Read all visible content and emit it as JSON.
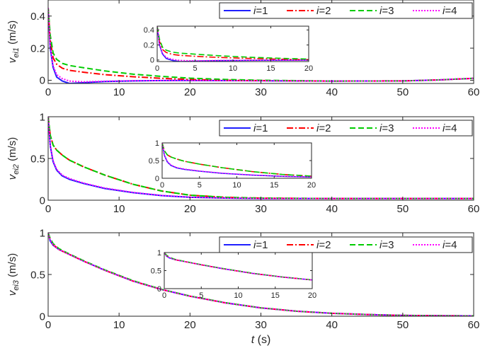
{
  "chart_data": [
    {
      "type": "line",
      "ylabel": "v_ei1 (m/s)",
      "ylabel_parts": {
        "v": "v",
        "sub": "ei1",
        "unit": " (m/s)"
      },
      "xlabel": "",
      "xlim": [
        0,
        60
      ],
      "ylim": [
        -0.02,
        0.5
      ],
      "xticks": [
        0,
        10,
        20,
        30,
        40,
        50,
        60
      ],
      "yticks": [
        0,
        0.2,
        0.4
      ],
      "grid": false,
      "legend_position": "top-right",
      "series": [
        {
          "name": "i=1",
          "label_var": "i",
          "label_val": "=1",
          "color": "#1f1fff",
          "dash": "solid",
          "points": [
            [
              0,
              0.45
            ],
            [
              0.3,
              0.2
            ],
            [
              0.7,
              0.08
            ],
            [
              1.2,
              0.02
            ],
            [
              2,
              -0.005
            ],
            [
              3,
              -0.02
            ],
            [
              5,
              -0.015
            ],
            [
              8,
              -0.008
            ],
            [
              12,
              -0.004
            ],
            [
              16,
              -0.002
            ],
            [
              20,
              -0.001
            ],
            [
              30,
              -0.003
            ],
            [
              40,
              -0.005
            ],
            [
              50,
              -0.004
            ],
            [
              55,
              0.002
            ],
            [
              60,
              0.012
            ]
          ]
        },
        {
          "name": "i=2",
          "label_var": "i",
          "label_val": "=2",
          "color": "#ff0000",
          "dash": "dashdot",
          "points": [
            [
              0,
              0.45
            ],
            [
              0.3,
              0.25
            ],
            [
              0.7,
              0.14
            ],
            [
              1.2,
              0.1
            ],
            [
              2,
              0.075
            ],
            [
              3,
              0.062
            ],
            [
              5,
              0.05
            ],
            [
              8,
              0.035
            ],
            [
              12,
              0.022
            ],
            [
              16,
              0.012
            ],
            [
              20,
              0.005
            ],
            [
              25,
              0.0
            ],
            [
              30,
              -0.002
            ],
            [
              40,
              -0.005
            ],
            [
              50,
              -0.004
            ],
            [
              55,
              0.002
            ],
            [
              60,
              0.012
            ]
          ]
        },
        {
          "name": "i=3",
          "label_var": "i",
          "label_val": "=3",
          "color": "#00cc00",
          "dash": "dash",
          "points": [
            [
              0,
              0.45
            ],
            [
              0.3,
              0.28
            ],
            [
              0.7,
              0.17
            ],
            [
              1.2,
              0.13
            ],
            [
              2,
              0.105
            ],
            [
              3,
              0.092
            ],
            [
              5,
              0.078
            ],
            [
              8,
              0.058
            ],
            [
              12,
              0.038
            ],
            [
              16,
              0.024
            ],
            [
              20,
              0.013
            ],
            [
              25,
              0.005
            ],
            [
              30,
              0.0
            ],
            [
              40,
              -0.005
            ],
            [
              50,
              -0.004
            ],
            [
              55,
              0.002
            ],
            [
              60,
              0.012
            ]
          ]
        },
        {
          "name": "i=4",
          "label_var": "i",
          "label_val": "=4",
          "color": "#ff00ff",
          "dash": "dot",
          "points": [
            [
              0,
              0.45
            ],
            [
              0.3,
              0.21
            ],
            [
              0.7,
              0.09
            ],
            [
              1.2,
              0.035
            ],
            [
              2,
              0.01
            ],
            [
              3,
              -0.005
            ],
            [
              5,
              -0.01
            ],
            [
              8,
              -0.006
            ],
            [
              12,
              -0.003
            ],
            [
              16,
              -0.002
            ],
            [
              20,
              -0.001
            ],
            [
              30,
              -0.003
            ],
            [
              40,
              -0.005
            ],
            [
              50,
              -0.004
            ],
            [
              55,
              0.002
            ],
            [
              60,
              0.012
            ]
          ]
        }
      ],
      "inset": {
        "xlim": [
          0,
          20
        ],
        "ylim": [
          -0.02,
          0.45
        ],
        "xticks": [
          0,
          5,
          10,
          15,
          20
        ],
        "yticks": [
          0,
          0.2,
          0.4
        ]
      }
    },
    {
      "type": "line",
      "ylabel": "v_ei2 (m/s)",
      "ylabel_parts": {
        "v": "v",
        "sub": "ei2",
        "unit": " (m/s)"
      },
      "xlabel": "",
      "xlim": [
        0,
        60
      ],
      "ylim": [
        0,
        1
      ],
      "xticks": [
        0,
        10,
        20,
        30,
        40,
        50,
        60
      ],
      "yticks": [
        0,
        0.5,
        1
      ],
      "grid": false,
      "legend_position": "top-right",
      "series": [
        {
          "name": "i=1",
          "label_var": "i",
          "label_val": "=1",
          "color": "#1f1fff",
          "dash": "solid",
          "points": [
            [
              0,
              1.0
            ],
            [
              0.3,
              0.65
            ],
            [
              0.7,
              0.46
            ],
            [
              1.2,
              0.36
            ],
            [
              2,
              0.29
            ],
            [
              3,
              0.25
            ],
            [
              5,
              0.2
            ],
            [
              8,
              0.14
            ],
            [
              12,
              0.09
            ],
            [
              16,
              0.055
            ],
            [
              20,
              0.035
            ],
            [
              25,
              0.025
            ],
            [
              30,
              0.02
            ],
            [
              40,
              0.02
            ],
            [
              50,
              0.02
            ],
            [
              60,
              0.02
            ]
          ]
        },
        {
          "name": "i=2",
          "label_var": "i",
          "label_val": "=2",
          "color": "#ff0000",
          "dash": "dashdot",
          "points": [
            [
              0,
              1.0
            ],
            [
              0.3,
              0.78
            ],
            [
              0.7,
              0.66
            ],
            [
              1.2,
              0.6
            ],
            [
              2,
              0.54
            ],
            [
              3,
              0.48
            ],
            [
              5,
              0.4
            ],
            [
              8,
              0.3
            ],
            [
              12,
              0.19
            ],
            [
              16,
              0.11
            ],
            [
              20,
              0.06
            ],
            [
              25,
              0.035
            ],
            [
              30,
              0.025
            ],
            [
              40,
              0.02
            ],
            [
              50,
              0.02
            ],
            [
              60,
              0.02
            ]
          ]
        },
        {
          "name": "i=3",
          "label_var": "i",
          "label_val": "=3",
          "color": "#00cc00",
          "dash": "dash",
          "points": [
            [
              0,
              1.0
            ],
            [
              0.3,
              0.78
            ],
            [
              0.7,
              0.66
            ],
            [
              1.2,
              0.6
            ],
            [
              2,
              0.54
            ],
            [
              3,
              0.48
            ],
            [
              5,
              0.4
            ],
            [
              8,
              0.3
            ],
            [
              12,
              0.19
            ],
            [
              16,
              0.11
            ],
            [
              20,
              0.06
            ],
            [
              25,
              0.035
            ],
            [
              30,
              0.025
            ],
            [
              40,
              0.02
            ],
            [
              50,
              0.02
            ],
            [
              60,
              0.02
            ]
          ]
        },
        {
          "name": "i=4",
          "label_var": "i",
          "label_val": "=4",
          "color": "#ff00ff",
          "dash": "dot",
          "points": [
            [
              0,
              1.0
            ],
            [
              0.3,
              0.66
            ],
            [
              0.7,
              0.47
            ],
            [
              1.2,
              0.37
            ],
            [
              2,
              0.3
            ],
            [
              3,
              0.26
            ],
            [
              5,
              0.205
            ],
            [
              8,
              0.145
            ],
            [
              12,
              0.093
            ],
            [
              16,
              0.057
            ],
            [
              20,
              0.036
            ],
            [
              25,
              0.026
            ],
            [
              30,
              0.02
            ],
            [
              40,
              0.02
            ],
            [
              50,
              0.02
            ],
            [
              60,
              0.02
            ]
          ]
        }
      ],
      "inset": {
        "xlim": [
          0,
          20
        ],
        "ylim": [
          0,
          1
        ],
        "xticks": [
          0,
          5,
          10,
          15,
          20
        ],
        "yticks": [
          0,
          0.5,
          1
        ]
      }
    },
    {
      "type": "line",
      "ylabel": "v_ei3 (m/s)",
      "ylabel_parts": {
        "v": "v",
        "sub": "ei3",
        "unit": " (m/s)"
      },
      "xlabel": "t (s)",
      "xlabel_parts": {
        "var": "t",
        "unit": " (s)"
      },
      "xlim": [
        0,
        60
      ],
      "ylim": [
        0,
        1
      ],
      "xticks": [
        0,
        10,
        20,
        30,
        40,
        50,
        60
      ],
      "yticks": [
        0,
        0.5,
        1
      ],
      "grid": false,
      "legend_position": "top-right",
      "series": [
        {
          "name": "i=1",
          "label_var": "i",
          "label_val": "=1",
          "color": "#1f1fff",
          "dash": "solid",
          "points": [
            [
              0,
              1.0
            ],
            [
              0.3,
              0.9
            ],
            [
              0.7,
              0.85
            ],
            [
              1.5,
              0.8
            ],
            [
              3,
              0.74
            ],
            [
              5,
              0.66
            ],
            [
              8,
              0.55
            ],
            [
              12,
              0.42
            ],
            [
              16,
              0.32
            ],
            [
              20,
              0.24
            ],
            [
              25,
              0.16
            ],
            [
              30,
              0.1
            ],
            [
              35,
              0.06
            ],
            [
              40,
              0.035
            ],
            [
              45,
              0.02
            ],
            [
              50,
              0.01
            ],
            [
              55,
              0.006
            ],
            [
              60,
              0.004
            ]
          ]
        },
        {
          "name": "i=2",
          "label_var": "i",
          "label_val": "=2",
          "color": "#ff0000",
          "dash": "dashdot",
          "points": [
            [
              0,
              1.0
            ],
            [
              0.3,
              0.92
            ],
            [
              0.7,
              0.86
            ],
            [
              1.5,
              0.8
            ],
            [
              3,
              0.74
            ],
            [
              5,
              0.66
            ],
            [
              8,
              0.55
            ],
            [
              12,
              0.42
            ],
            [
              16,
              0.32
            ],
            [
              20,
              0.24
            ],
            [
              25,
              0.16
            ],
            [
              30,
              0.1
            ],
            [
              35,
              0.06
            ],
            [
              40,
              0.035
            ],
            [
              45,
              0.02
            ],
            [
              50,
              0.01
            ],
            [
              55,
              0.006
            ],
            [
              60,
              0.004
            ]
          ]
        },
        {
          "name": "i=3",
          "label_var": "i",
          "label_val": "=3",
          "color": "#00cc00",
          "dash": "dash",
          "points": [
            [
              0,
              1.0
            ],
            [
              0.3,
              0.93
            ],
            [
              0.7,
              0.87
            ],
            [
              1.5,
              0.81
            ],
            [
              3,
              0.745
            ],
            [
              5,
              0.665
            ],
            [
              8,
              0.555
            ],
            [
              12,
              0.425
            ],
            [
              16,
              0.322
            ],
            [
              20,
              0.242
            ],
            [
              25,
              0.162
            ],
            [
              30,
              0.1
            ],
            [
              35,
              0.06
            ],
            [
              40,
              0.035
            ],
            [
              45,
              0.02
            ],
            [
              50,
              0.01
            ],
            [
              55,
              0.006
            ],
            [
              60,
              0.004
            ]
          ]
        },
        {
          "name": "i=4",
          "label_var": "i",
          "label_val": "=4",
          "color": "#ff00ff",
          "dash": "dot",
          "points": [
            [
              0,
              1.0
            ],
            [
              0.3,
              0.91
            ],
            [
              0.7,
              0.855
            ],
            [
              1.5,
              0.8
            ],
            [
              3,
              0.74
            ],
            [
              5,
              0.66
            ],
            [
              8,
              0.55
            ],
            [
              12,
              0.42
            ],
            [
              16,
              0.32
            ],
            [
              20,
              0.24
            ],
            [
              25,
              0.16
            ],
            [
              30,
              0.1
            ],
            [
              35,
              0.06
            ],
            [
              40,
              0.035
            ],
            [
              45,
              0.02
            ],
            [
              50,
              0.01
            ],
            [
              55,
              0.006
            ],
            [
              60,
              0.004
            ]
          ]
        }
      ],
      "inset": {
        "xlim": [
          0,
          20
        ],
        "ylim": [
          0,
          1
        ],
        "xticks": [
          0,
          5,
          10,
          15,
          20
        ],
        "yticks": [
          0,
          0.5,
          1
        ]
      }
    }
  ]
}
